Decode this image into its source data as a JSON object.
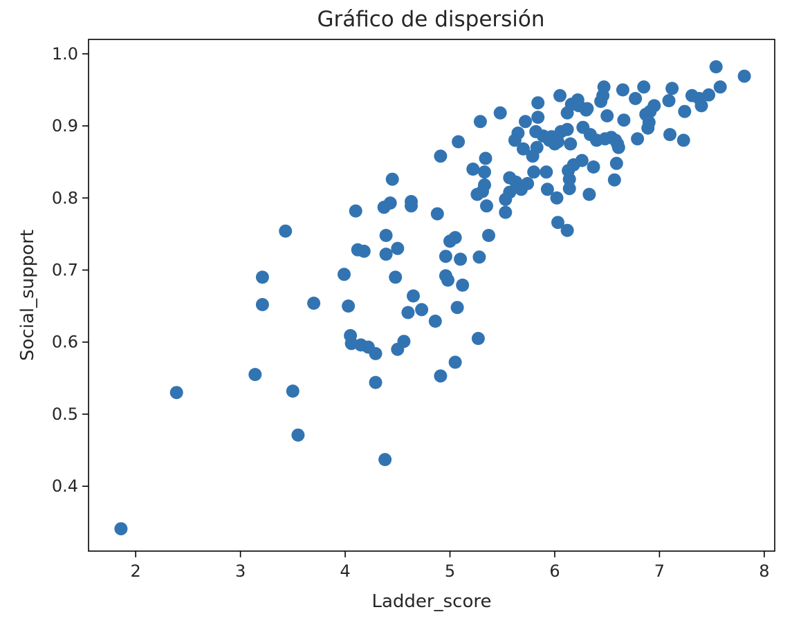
{
  "chart_data": {
    "type": "scatter",
    "title": "Gráfico de dispersión",
    "xlabel": "Ladder_score",
    "ylabel": "Social_support",
    "xlim": [
      1.55,
      8.1
    ],
    "ylim": [
      0.31,
      1.02
    ],
    "xticks": [
      "2",
      "3",
      "4",
      "5",
      "6",
      "7",
      "8"
    ],
    "yticks": [
      "0.4",
      "0.5",
      "0.6",
      "0.7",
      "0.8",
      "0.9",
      "1.0"
    ],
    "grid": false,
    "marker_color": "#3274b2",
    "points": [
      [
        1.86,
        0.341
      ],
      [
        2.39,
        0.53
      ],
      [
        3.14,
        0.555
      ],
      [
        3.21,
        0.69
      ],
      [
        3.21,
        0.652
      ],
      [
        3.43,
        0.754
      ],
      [
        3.5,
        0.532
      ],
      [
        3.55,
        0.471
      ],
      [
        3.7,
        0.654
      ],
      [
        3.99,
        0.694
      ],
      [
        4.03,
        0.65
      ],
      [
        4.05,
        0.609
      ],
      [
        4.06,
        0.598
      ],
      [
        4.1,
        0.782
      ],
      [
        4.12,
        0.728
      ],
      [
        4.15,
        0.596
      ],
      [
        4.18,
        0.726
      ],
      [
        4.22,
        0.593
      ],
      [
        4.29,
        0.584
      ],
      [
        4.29,
        0.544
      ],
      [
        4.37,
        0.787
      ],
      [
        4.38,
        0.437
      ],
      [
        4.39,
        0.722
      ],
      [
        4.39,
        0.748
      ],
      [
        4.43,
        0.793
      ],
      [
        4.45,
        0.826
      ],
      [
        4.48,
        0.69
      ],
      [
        4.5,
        0.73
      ],
      [
        4.5,
        0.59
      ],
      [
        4.56,
        0.601
      ],
      [
        4.6,
        0.641
      ],
      [
        4.63,
        0.789
      ],
      [
        4.63,
        0.795
      ],
      [
        4.65,
        0.664
      ],
      [
        4.73,
        0.645
      ],
      [
        4.86,
        0.629
      ],
      [
        4.88,
        0.778
      ],
      [
        4.91,
        0.553
      ],
      [
        4.91,
        0.858
      ],
      [
        4.96,
        0.692
      ],
      [
        4.96,
        0.719
      ],
      [
        4.98,
        0.686
      ],
      [
        5.0,
        0.74
      ],
      [
        5.05,
        0.745
      ],
      [
        5.05,
        0.572
      ],
      [
        5.07,
        0.648
      ],
      [
        5.08,
        0.878
      ],
      [
        5.1,
        0.715
      ],
      [
        5.12,
        0.679
      ],
      [
        5.22,
        0.84
      ],
      [
        5.26,
        0.805
      ],
      [
        5.27,
        0.605
      ],
      [
        5.28,
        0.718
      ],
      [
        5.29,
        0.906
      ],
      [
        5.31,
        0.809
      ],
      [
        5.33,
        0.818
      ],
      [
        5.33,
        0.836
      ],
      [
        5.34,
        0.855
      ],
      [
        5.35,
        0.789
      ],
      [
        5.37,
        0.748
      ],
      [
        5.48,
        0.918
      ],
      [
        5.53,
        0.78
      ],
      [
        5.53,
        0.798
      ],
      [
        5.57,
        0.808
      ],
      [
        5.57,
        0.828
      ],
      [
        5.62,
        0.88
      ],
      [
        5.63,
        0.822
      ],
      [
        5.65,
        0.89
      ],
      [
        5.68,
        0.812
      ],
      [
        5.7,
        0.868
      ],
      [
        5.72,
        0.906
      ],
      [
        5.74,
        0.82
      ],
      [
        5.79,
        0.858
      ],
      [
        5.8,
        0.836
      ],
      [
        5.82,
        0.892
      ],
      [
        5.83,
        0.87
      ],
      [
        5.84,
        0.932
      ],
      [
        5.84,
        0.912
      ],
      [
        5.89,
        0.886
      ],
      [
        5.92,
        0.836
      ],
      [
        5.93,
        0.812
      ],
      [
        5.95,
        0.88
      ],
      [
        5.97,
        0.885
      ],
      [
        6.0,
        0.875
      ],
      [
        6.02,
        0.8
      ],
      [
        6.03,
        0.878
      ],
      [
        6.03,
        0.766
      ],
      [
        6.05,
        0.942
      ],
      [
        6.06,
        0.892
      ],
      [
        6.12,
        0.918
      ],
      [
        6.12,
        0.895
      ],
      [
        6.12,
        0.755
      ],
      [
        6.13,
        0.838
      ],
      [
        6.14,
        0.813
      ],
      [
        6.14,
        0.826
      ],
      [
        6.15,
        0.875
      ],
      [
        6.16,
        0.93
      ],
      [
        6.18,
        0.846
      ],
      [
        6.22,
        0.936
      ],
      [
        6.23,
        0.928
      ],
      [
        6.26,
        0.852
      ],
      [
        6.27,
        0.898
      ],
      [
        6.3,
        0.922
      ],
      [
        6.31,
        0.924
      ],
      [
        6.33,
        0.805
      ],
      [
        6.34,
        0.888
      ],
      [
        6.37,
        0.843
      ],
      [
        6.4,
        0.88
      ],
      [
        6.44,
        0.934
      ],
      [
        6.46,
        0.942
      ],
      [
        6.47,
        0.954
      ],
      [
        6.48,
        0.882
      ],
      [
        6.5,
        0.914
      ],
      [
        6.54,
        0.884
      ],
      [
        6.57,
        0.825
      ],
      [
        6.58,
        0.88
      ],
      [
        6.59,
        0.848
      ],
      [
        6.6,
        0.875
      ],
      [
        6.61,
        0.87
      ],
      [
        6.65,
        0.95
      ],
      [
        6.66,
        0.908
      ],
      [
        6.77,
        0.938
      ],
      [
        6.79,
        0.882
      ],
      [
        6.85,
        0.954
      ],
      [
        6.87,
        0.916
      ],
      [
        6.89,
        0.897
      ],
      [
        6.9,
        0.905
      ],
      [
        6.91,
        0.92
      ],
      [
        6.95,
        0.928
      ],
      [
        7.09,
        0.935
      ],
      [
        7.1,
        0.888
      ],
      [
        7.12,
        0.952
      ],
      [
        7.23,
        0.88
      ],
      [
        7.24,
        0.92
      ],
      [
        7.31,
        0.942
      ],
      [
        7.38,
        0.938
      ],
      [
        7.4,
        0.928
      ],
      [
        7.47,
        0.943
      ],
      [
        7.54,
        0.982
      ],
      [
        7.58,
        0.954
      ],
      [
        7.81,
        0.969
      ]
    ]
  }
}
